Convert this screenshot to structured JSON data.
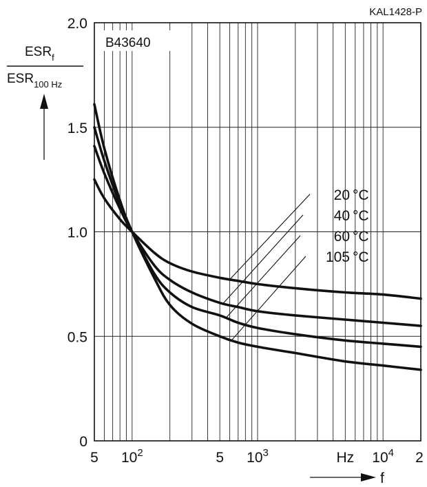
{
  "chart_data": {
    "type": "line",
    "figure_id": "KAL1428-P",
    "part_number": "B43640",
    "x_scale": "log",
    "x_range_hz": [
      50,
      20000
    ],
    "ylim": [
      0,
      2.0
    ],
    "grid": true,
    "y_ticks": [
      {
        "value": 0,
        "label": "0"
      },
      {
        "value": 0.5,
        "label": "0.5"
      },
      {
        "value": 1.0,
        "label": "1.0"
      },
      {
        "value": 1.5,
        "label": "1.5"
      },
      {
        "value": 2.0,
        "label": "2.0"
      }
    ],
    "x_ticks": [
      {
        "value": 50,
        "label": "5",
        "sup": ""
      },
      {
        "value": 100,
        "label": "10",
        "sup": "2"
      },
      {
        "value": 500,
        "label": "5",
        "sup": ""
      },
      {
        "value": 1000,
        "label": "10",
        "sup": "3"
      },
      {
        "value": 5000,
        "label": "Hz",
        "sup": ""
      },
      {
        "value": 10000,
        "label": "10",
        "sup": "4"
      },
      {
        "value": 20000,
        "label": "2",
        "sup": ""
      }
    ],
    "ylabel": {
      "num_base": "ESR",
      "num_sub": "f",
      "den_base": "ESR",
      "den_sub": "100 Hz"
    },
    "xlabel": "f",
    "series": [
      {
        "name": "20 °C",
        "label_main": "20",
        "label_unit": "°C",
        "x": [
          50,
          60,
          80,
          100,
          150,
          200,
          300,
          500,
          700,
          1000,
          2000,
          5000,
          10000,
          20000
        ],
        "y": [
          1.25,
          1.16,
          1.06,
          1.0,
          0.9,
          0.85,
          0.81,
          0.78,
          0.765,
          0.75,
          0.73,
          0.71,
          0.7,
          0.68
        ]
      },
      {
        "name": "40 °C",
        "label_main": "40",
        "label_unit": "°C",
        "x": [
          50,
          60,
          80,
          100,
          150,
          200,
          300,
          500,
          700,
          1000,
          2000,
          5000,
          10000,
          20000
        ],
        "y": [
          1.41,
          1.28,
          1.11,
          1.0,
          0.84,
          0.77,
          0.71,
          0.66,
          0.64,
          0.62,
          0.6,
          0.58,
          0.565,
          0.55
        ]
      },
      {
        "name": "60 °C",
        "label_main": "60",
        "label_unit": "°C",
        "x": [
          50,
          60,
          80,
          100,
          150,
          200,
          300,
          500,
          700,
          1000,
          2000,
          5000,
          10000,
          20000
        ],
        "y": [
          1.5,
          1.34,
          1.13,
          1.0,
          0.8,
          0.71,
          0.64,
          0.6,
          0.565,
          0.54,
          0.51,
          0.48,
          0.465,
          0.45
        ]
      },
      {
        "name": "105 °C",
        "label_main": "105",
        "label_unit": "°C",
        "x": [
          50,
          60,
          80,
          100,
          150,
          200,
          300,
          500,
          700,
          1000,
          2000,
          5000,
          10000,
          20000
        ],
        "y": [
          1.61,
          1.4,
          1.15,
          1.0,
          0.78,
          0.65,
          0.56,
          0.5,
          0.47,
          0.45,
          0.42,
          0.38,
          0.36,
          0.34
        ]
      }
    ]
  }
}
